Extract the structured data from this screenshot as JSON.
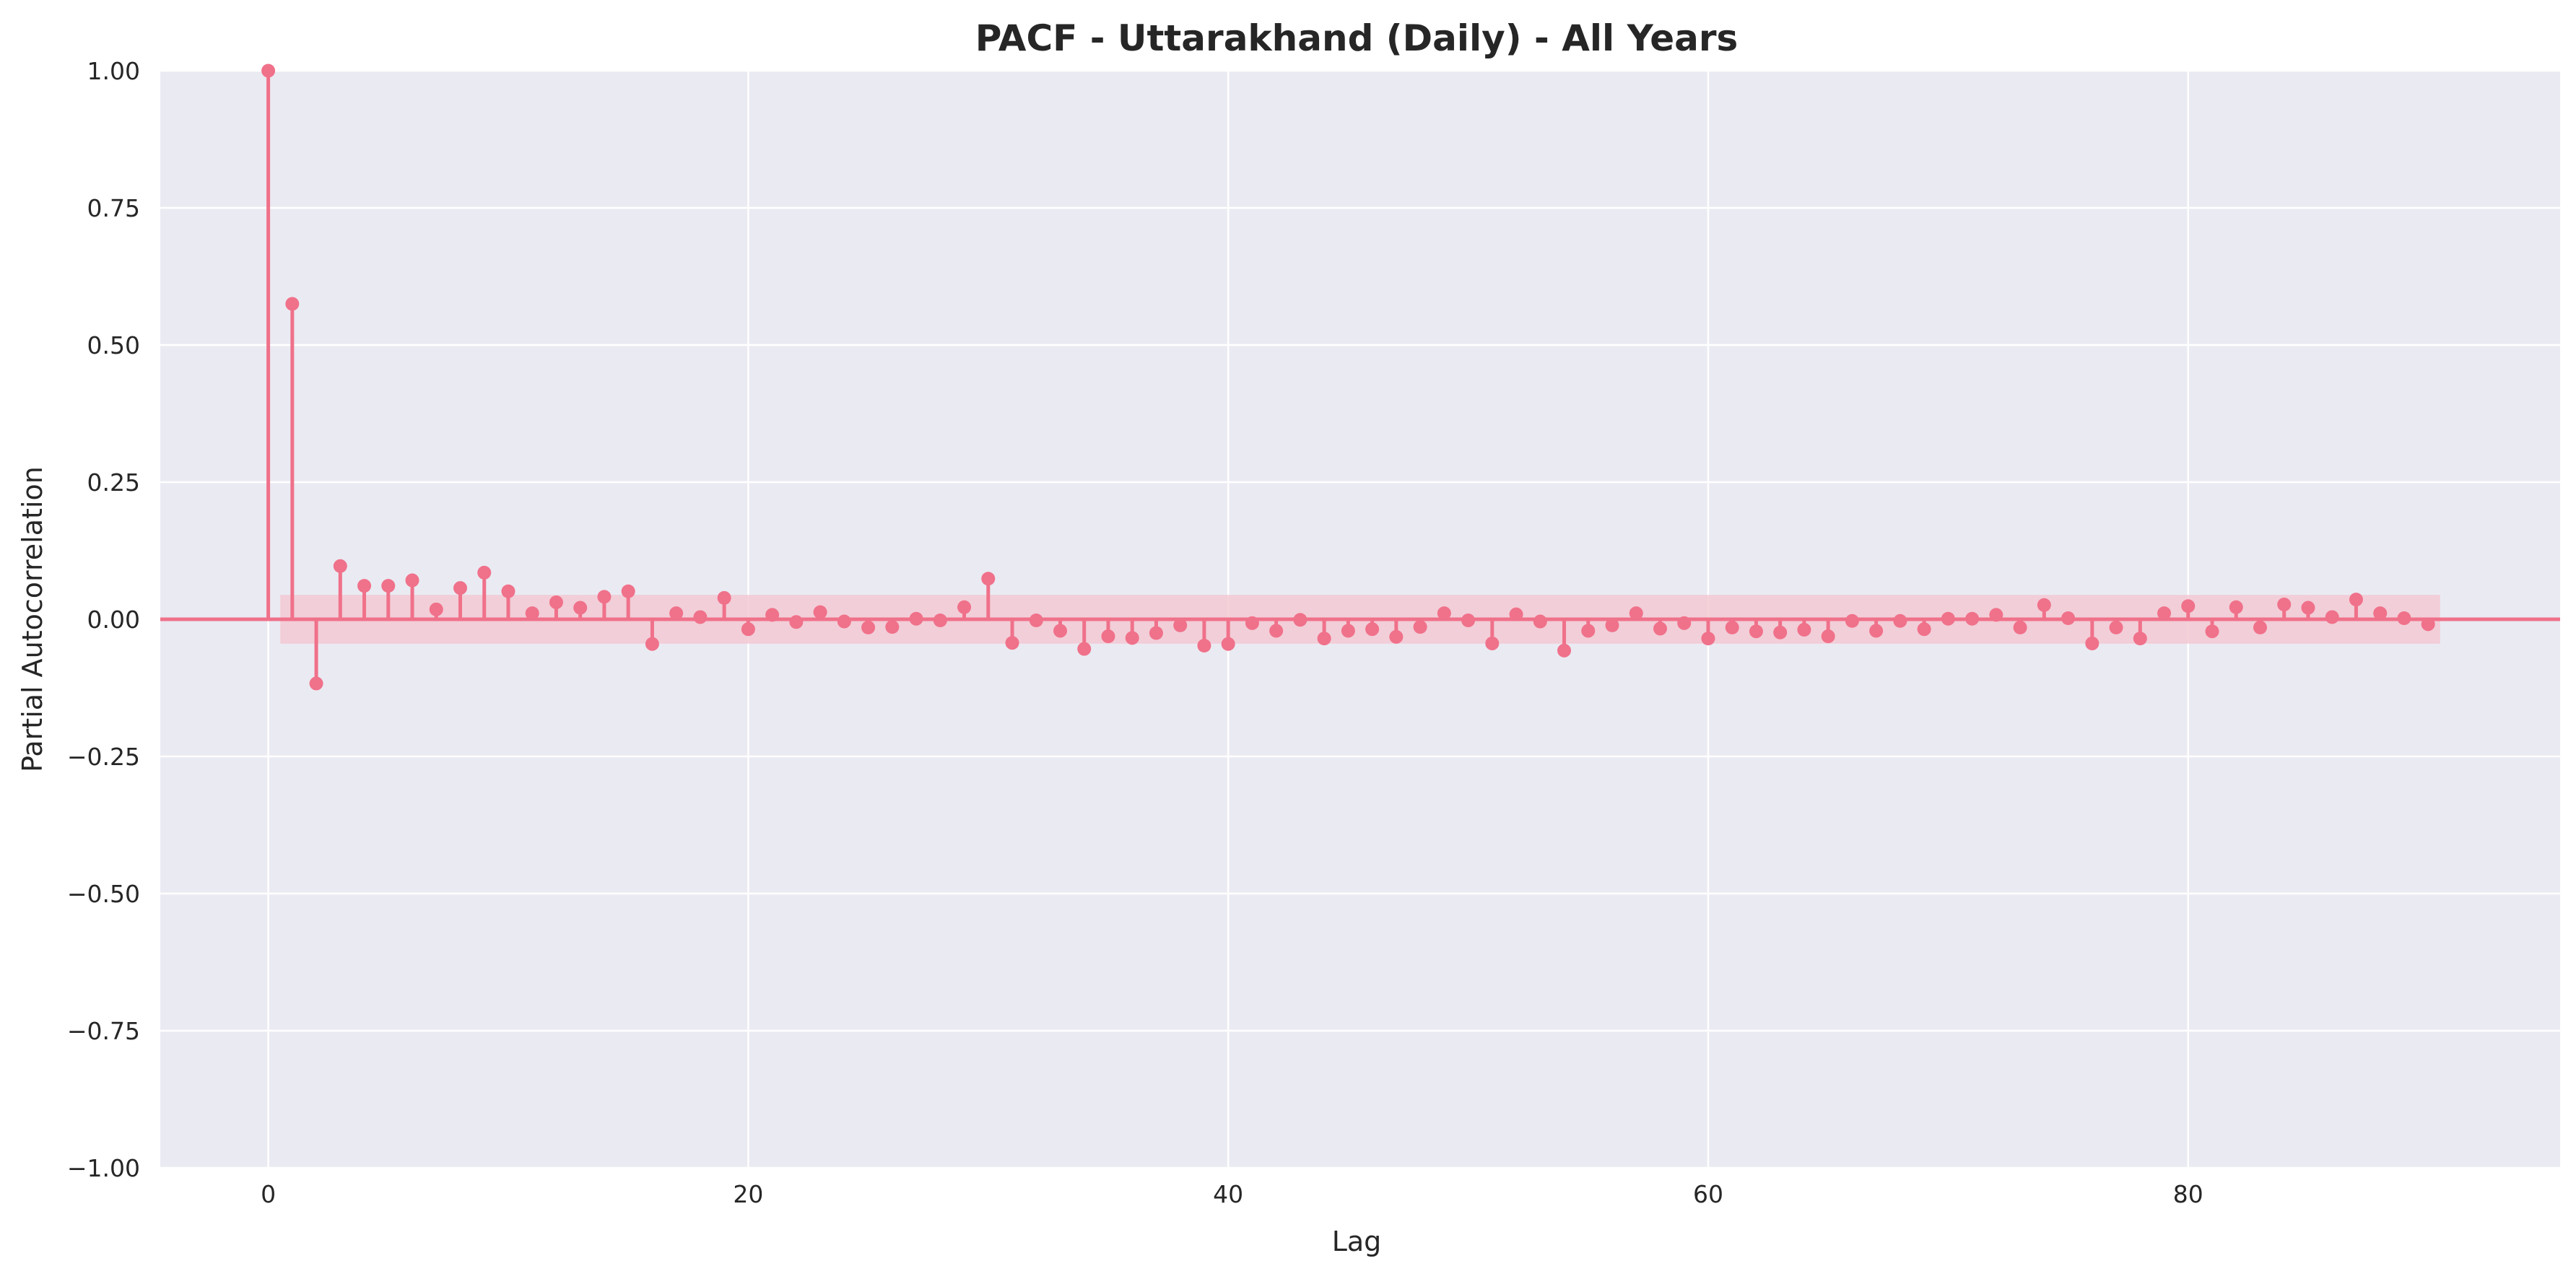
{
  "chart_data": {
    "type": "stem",
    "title": "PACF - Uttarakhand (Daily) - All Years",
    "xlabel": "Lag",
    "ylabel": "Partial Autocorrelation",
    "xlim": [
      -4.5,
      95.5
    ],
    "ylim": [
      -1.0,
      1.0
    ],
    "xticks": [
      0,
      20,
      40,
      60,
      80
    ],
    "xtick_labels": [
      "0",
      "20",
      "40",
      "60",
      "80"
    ],
    "yticks": [
      -1.0,
      -0.75,
      -0.5,
      -0.25,
      0.0,
      0.25,
      0.5,
      0.75,
      1.0
    ],
    "ytick_labels": [
      "−1.00",
      "−0.75",
      "−0.50",
      "−0.25",
      "0.00",
      "0.25",
      "0.50",
      "0.75",
      "1.00"
    ],
    "grid": true,
    "colors": {
      "stem": "#f0718a",
      "band": "#f3c9d4",
      "axes_bg": "#eaeaf2",
      "grid": "#ffffff",
      "text": "#262626"
    },
    "confidence_band": {
      "x_range": [
        0.5,
        90.5
      ],
      "lower": -0.0445,
      "upper": 0.0445
    },
    "lags": [
      0,
      1,
      2,
      3,
      4,
      5,
      6,
      7,
      8,
      9,
      10,
      11,
      12,
      13,
      14,
      15,
      16,
      17,
      18,
      19,
      20,
      21,
      22,
      23,
      24,
      25,
      26,
      27,
      28,
      29,
      30,
      31,
      32,
      33,
      34,
      35,
      36,
      37,
      38,
      39,
      40,
      41,
      42,
      43,
      44,
      45,
      46,
      47,
      48,
      49,
      50,
      51,
      52,
      53,
      54,
      55,
      56,
      57,
      58,
      59,
      60,
      61,
      62,
      63,
      64,
      65,
      66,
      67,
      68,
      69,
      70,
      71,
      72,
      73,
      74,
      75,
      76,
      77,
      78,
      79,
      80,
      81,
      82,
      83,
      84,
      85,
      86,
      87,
      88,
      89,
      90
    ],
    "values": [
      1.0,
      0.575,
      -0.117,
      0.097,
      0.061,
      0.061,
      0.071,
      0.018,
      0.057,
      0.085,
      0.051,
      0.011,
      0.031,
      0.021,
      0.041,
      0.051,
      -0.045,
      0.011,
      0.004,
      0.039,
      -0.018,
      0.008,
      -0.005,
      0.013,
      -0.004,
      -0.015,
      -0.014,
      0.001,
      -0.002,
      0.022,
      0.074,
      -0.043,
      -0.002,
      -0.021,
      -0.054,
      -0.031,
      -0.034,
      -0.025,
      -0.011,
      -0.048,
      -0.045,
      -0.007,
      -0.021,
      -0.001,
      -0.035,
      -0.021,
      -0.018,
      -0.032,
      -0.014,
      0.011,
      -0.002,
      -0.044,
      0.009,
      -0.004,
      -0.057,
      -0.021,
      -0.011,
      0.011,
      -0.017,
      -0.007,
      -0.035,
      -0.015,
      -0.022,
      -0.024,
      -0.019,
      -0.031,
      -0.003,
      -0.021,
      -0.003,
      -0.018,
      0.001,
      0.001,
      0.008,
      -0.015,
      0.026,
      0.002,
      -0.044,
      -0.015,
      -0.035,
      0.011,
      0.024,
      -0.022,
      0.022,
      -0.015,
      0.027,
      0.021,
      0.004,
      0.036,
      0.011,
      0.002,
      -0.009
    ]
  }
}
